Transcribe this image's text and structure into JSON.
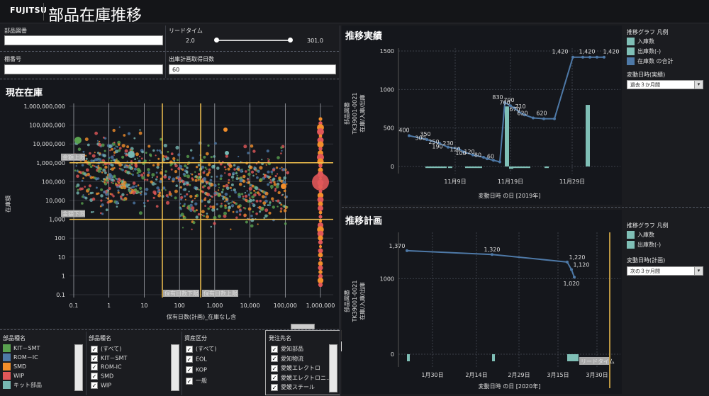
{
  "header": {
    "logo": "FUJITSU",
    "title": "部品在庫推移"
  },
  "filters": {
    "part_drawing_label": "部品図番",
    "part_drawing_value": "",
    "lead_time_label": "リードタイム",
    "lead_time_min": "2.0",
    "lead_time_max": "301.0",
    "lead_time_range": [
      0,
      1
    ],
    "shelf_label": "棚番号",
    "shelf_value": "",
    "plan_days_label": "出庫計画取得日数",
    "plan_days_value": "60"
  },
  "current_stock": {
    "title": "現在在庫",
    "ylabel": "在庫額",
    "xlabel": "保有日数(計画)_在庫なし含",
    "y_ticks": [
      "1,000,000,000",
      "100,000,000",
      "10,000,000",
      "1,000,000",
      "100,000",
      "10,000",
      "1,000",
      "100",
      "10",
      "1",
      "0.1"
    ],
    "x_ticks": [
      "0.1",
      "1",
      "10",
      "100",
      "1,000",
      "10,000",
      "100,000",
      "1,000,000"
    ],
    "ref_labels": {
      "amount_upper": "金額上限",
      "amount_lower": "金額下限",
      "days_lower": "保有日数下限",
      "days_upper": "保有日数上限"
    }
  },
  "actuals": {
    "title": "推移実績",
    "ylabel": "部品図番\nTK39001-0021\n在庫/入庫/出庫",
    "xlabel": "変動日時 の日 [2019年]",
    "y_ticks": [
      "1500",
      "1000",
      "500",
      "0"
    ],
    "x_ticks": [
      "11月9日",
      "11月19日",
      "11月29日"
    ],
    "point_labels": [
      "400",
      "350",
      "300",
      "250",
      "190",
      "230",
      "150",
      "120",
      "100",
      "80",
      "60",
      "830",
      "790",
      "760",
      "710",
      "670",
      "620",
      "620",
      "1,420",
      "1,420",
      "1,420"
    ]
  },
  "plan": {
    "title": "推移計画",
    "ylabel": "部品図番\nTK39001-0021\n在庫/入庫/出庫",
    "xlabel": "変動日時 の日 [2020年]",
    "y_ticks": [
      "1000",
      "0"
    ],
    "x_ticks": [
      "1月30日",
      "2月14日",
      "2月29日",
      "3月15日",
      "3月30日"
    ],
    "point_labels": [
      "1,370",
      "1,320",
      "1,220",
      "1,120",
      "1,020"
    ],
    "lead_time_label": "リードタイム"
  },
  "legend_actual": {
    "title": "推移グラフ 凡例",
    "items": [
      {
        "label": "入庫数",
        "color": "#7fbfb6"
      },
      {
        "label": "出庫数(-)",
        "color": "#7fbfb6"
      },
      {
        "label": "在庫数 の合計",
        "color": "#4e79a7"
      }
    ],
    "select_label": "変動日時(実績)",
    "select_value": "過去３か月間"
  },
  "legend_plan": {
    "title": "推移グラフ 凡例",
    "items": [
      {
        "label": "入庫数",
        "color": "#7fbfb6"
      },
      {
        "label": "出庫数(-)",
        "color": "#7fbfb6"
      }
    ],
    "select_label": "変動日時(計画)",
    "select_value": "次の３か月間"
  },
  "part_type_legend": {
    "title": "部品種名",
    "items": [
      {
        "label": "KIT－SMT",
        "color": "#59a14f"
      },
      {
        "label": "ROM－IC",
        "color": "#4e79a7"
      },
      {
        "label": "SMD",
        "color": "#f28e2b"
      },
      {
        "label": "WIP",
        "color": "#e15759"
      },
      {
        "label": "キット部品",
        "color": "#76b7b2"
      }
    ]
  },
  "part_type_filter": {
    "title": "部品種名",
    "items": [
      "(すべて)",
      "KIT－SMT",
      "ROM-IC",
      "SMD",
      "WIP"
    ]
  },
  "asset_filter": {
    "title": "資産区分",
    "items": [
      "(すべて)",
      "EOL",
      "KOP",
      "一般"
    ]
  },
  "order_filter": {
    "title": "発注先名",
    "items": [
      "愛知部品",
      "愛知物流",
      "愛媛エレクトロ",
      "愛媛エレクトロニ…",
      "愛媛スチール"
    ]
  },
  "colors": {
    "line": "#4e79a7",
    "bar": "#7fbfb6",
    "ref": "#f2c14e"
  }
}
